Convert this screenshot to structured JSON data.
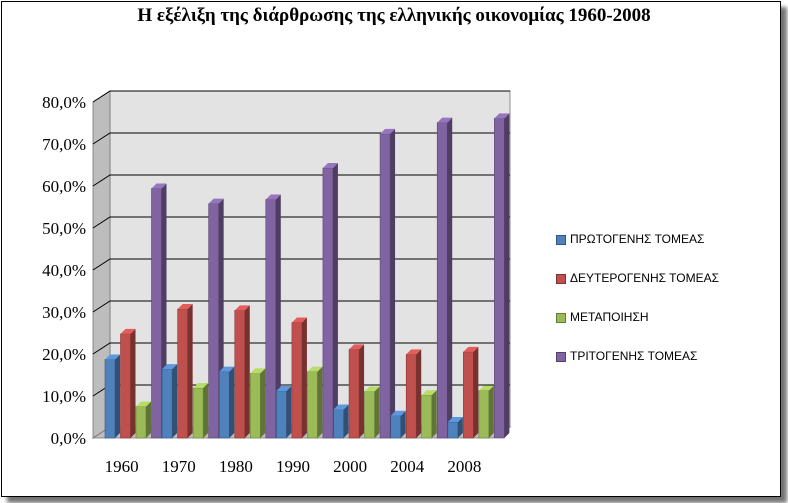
{
  "chart_data": {
    "type": "bar",
    "title": "Η εξέλιξη της διάρθρωσης της ελληνικής οικονομίας 1960-2008",
    "categories": [
      "1960",
      "1970",
      "1980",
      "1990",
      "2000",
      "2004",
      "2008"
    ],
    "series": [
      {
        "name": "ΠΡΩΤΟΓΕΝΗΣ ΤΟΜΕΑΣ",
        "color": "#4F81BD",
        "values": [
          18.7,
          16.4,
          15.8,
          11.2,
          6.8,
          5.3,
          3.8
        ]
      },
      {
        "name": "ΔΕΥΤΕΡΟΓΕΝΗΣ ΤΟΜΕΑΣ",
        "color": "#C0504D",
        "values": [
          24.8,
          30.7,
          30.4,
          27.5,
          21.1,
          19.9,
          20.5
        ]
      },
      {
        "name": "ΜΕΤΑΠΟΙΗΣΗ",
        "color": "#9BBB59",
        "values": [
          7.5,
          11.9,
          15.4,
          15.8,
          11.1,
          10.2,
          11.3
        ]
      },
      {
        "name": "ΤΡΙΤΟΓΕΝΗΣ ΤΟΜΕΑΣ",
        "color": "#8064A2",
        "values": [
          59.4,
          55.8,
          56.8,
          64.3,
          72.4,
          75.1,
          76.1
        ]
      }
    ],
    "yticks": [
      "0,0%",
      "10,0%",
      "20,0%",
      "30,0%",
      "40,0%",
      "50,0%",
      "60,0%",
      "70,0%",
      "80,0%"
    ],
    "ylim": [
      0,
      80
    ],
    "grid": true,
    "legend_position": "right",
    "wall_color": "#E3E3E3",
    "grid_color": "#000000"
  }
}
